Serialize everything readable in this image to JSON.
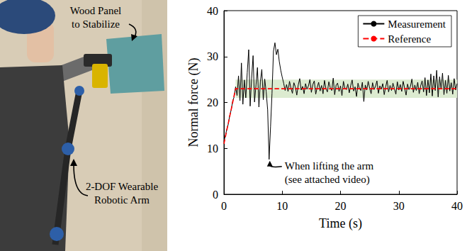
{
  "chart_data": {
    "type": "line",
    "x_label": "Time (s)",
    "y_label": "Normal force (N)",
    "xlim": [
      0,
      40
    ],
    "xticks": [
      0,
      10,
      20,
      30,
      40
    ],
    "ylim": [
      0,
      40
    ],
    "yticks": [
      0,
      10,
      20,
      30,
      40
    ],
    "grid": false,
    "legend": "upper right",
    "annotation": [
      "When lifting the arm",
      "(see attached video)"
    ],
    "tolerance_band": {
      "x": [
        2,
        40
      ],
      "y": [
        21,
        25
      ],
      "color": "#dcebd0"
    },
    "x": [
      0,
      0.25,
      0.5,
      0.75,
      1,
      1.25,
      1.5,
      1.75,
      2,
      2.25,
      2.5,
      2.75,
      3,
      3.25,
      3.5,
      3.75,
      4,
      4.25,
      4.5,
      4.75,
      5,
      5.25,
      5.5,
      5.75,
      6,
      6.25,
      6.5,
      6.75,
      7,
      7.25,
      7.5,
      7.75,
      8,
      8.25,
      8.5,
      8.75,
      9,
      9.25,
      9.5,
      9.75,
      10,
      10.25,
      10.5,
      10.75,
      11,
      11.25,
      11.5,
      11.75,
      12,
      12.25,
      12.5,
      12.75,
      13,
      13.25,
      13.5,
      13.75,
      14,
      14.25,
      14.5,
      14.75,
      15,
      15.25,
      15.5,
      15.75,
      16,
      16.25,
      16.5,
      16.75,
      17,
      17.25,
      17.5,
      17.75,
      18,
      18.25,
      18.5,
      18.75,
      19,
      19.25,
      19.5,
      19.75,
      20,
      20.25,
      20.5,
      20.75,
      21,
      21.25,
      21.5,
      21.75,
      22,
      22.25,
      22.5,
      22.75,
      23,
      23.25,
      23.5,
      23.75,
      24,
      24.25,
      24.5,
      24.75,
      25,
      25.25,
      25.5,
      25.75,
      26,
      26.25,
      26.5,
      26.75,
      27,
      27.25,
      27.5,
      27.75,
      28,
      28.25,
      28.5,
      28.75,
      29,
      29.25,
      29.5,
      29.75,
      30,
      30.25,
      30.5,
      30.75,
      31,
      31.25,
      31.5,
      31.75,
      32,
      32.25,
      32.5,
      32.75,
      33,
      33.25,
      33.5,
      33.75,
      34,
      34.25,
      34.5,
      34.75,
      35,
      35.25,
      35.5,
      35.75,
      36,
      36.25,
      36.5,
      36.75,
      37,
      37.25,
      37.5,
      37.75,
      38,
      38.25,
      38.5,
      38.75,
      39,
      39.25,
      39.5,
      39.75,
      40
    ],
    "series": [
      {
        "name": "Measurement",
        "color": "#000000",
        "marker": "none",
        "line_style": "solid",
        "values": [
          11.5,
          12.8,
          14.2,
          15.3,
          17.2,
          18.4,
          20.3,
          21.2,
          23.4,
          21.5,
          25.8,
          20.4,
          28.6,
          19.6,
          24.9,
          21.0,
          26.5,
          31.5,
          19.2,
          25.3,
          30.2,
          20.1,
          23.8,
          27.6,
          19.0,
          24.5,
          27.2,
          20.6,
          25.1,
          22.3,
          18.4,
          7.6,
          14.8,
          22.0,
          31.2,
          33.0,
          30.4,
          31.6,
          28.9,
          27.0,
          25.5,
          24.2,
          22.6,
          23.9,
          22.4,
          24.6,
          23.1,
          22.0,
          24.3,
          23.4,
          21.6,
          23.8,
          25.2,
          22.7,
          23.5,
          21.9,
          24.1,
          22.9,
          23.6,
          25.0,
          22.2,
          23.9,
          24.7,
          21.8,
          23.3,
          24.4,
          22.5,
          23.7,
          21.9,
          24.8,
          23.0,
          22.3,
          24.5,
          23.2,
          22.6,
          25.3,
          21.7,
          23.8,
          24.2,
          22.4,
          23.6,
          21.5,
          24.6,
          23.1,
          22.8,
          24.0,
          22.1,
          23.7,
          24.9,
          22.5,
          23.4,
          21.3,
          24.2,
          23.0,
          22.6,
          24.4,
          20.2,
          23.8,
          22.7,
          24.6,
          23.1,
          21.9,
          24.3,
          22.8,
          23.5,
          24.7,
          22.0,
          23.6,
          22.9,
          24.1,
          21.7,
          23.4,
          24.8,
          22.3,
          23.7,
          22.6,
          24.2,
          23.0,
          21.8,
          24.5,
          22.7,
          23.9,
          22.4,
          24.6,
          23.1,
          21.6,
          24.0,
          22.8,
          23.5,
          25.1,
          22.2,
          23.8,
          22.6,
          24.4,
          21.9,
          23.6,
          24.7,
          22.3,
          25.4,
          21.5,
          24.9,
          22.1,
          26.2,
          21.4,
          25.8,
          22.6,
          27.0,
          21.2,
          25.6,
          22.9,
          26.4,
          21.7,
          24.8,
          22.0,
          25.9,
          22.5,
          24.3,
          21.8,
          25.2,
          22.7,
          24.1
        ]
      },
      {
        "name": "Reference",
        "color": "#ff0000",
        "marker": "none",
        "line_style": "dashed",
        "values": [
          11,
          12.5,
          14,
          15.5,
          17,
          18.5,
          20,
          21.5,
          23,
          23,
          23,
          23,
          23,
          23,
          23,
          23,
          23,
          23,
          23,
          23,
          23,
          23,
          23,
          23,
          23,
          23,
          23,
          23,
          23,
          23,
          23,
          23,
          23,
          23,
          23,
          23,
          23,
          23,
          23,
          23,
          23,
          23,
          23,
          23,
          23,
          23,
          23,
          23,
          23,
          23,
          23,
          23,
          23,
          23,
          23,
          23,
          23,
          23,
          23,
          23,
          23,
          23,
          23,
          23,
          23,
          23,
          23,
          23,
          23,
          23,
          23,
          23,
          23,
          23,
          23,
          23,
          23,
          23,
          23,
          23,
          23,
          23,
          23,
          23,
          23,
          23,
          23,
          23,
          23,
          23,
          23,
          23,
          23,
          23,
          23,
          23,
          23,
          23,
          23,
          23,
          23,
          23,
          23,
          23,
          23,
          23,
          23,
          23,
          23,
          23,
          23,
          23,
          23,
          23,
          23,
          23,
          23,
          23,
          23,
          23,
          23,
          23,
          23,
          23,
          23,
          23,
          23,
          23,
          23,
          23,
          23,
          23,
          23,
          23,
          23,
          23,
          23,
          23,
          23,
          23,
          23,
          23,
          23,
          23,
          23,
          23,
          23,
          23,
          23,
          23,
          23,
          23,
          23,
          23,
          23,
          23,
          23,
          23,
          23,
          23,
          23
        ]
      }
    ]
  },
  "photo_labels": [
    {
      "lines": [
        "Wood Panel",
        "to Stabilize"
      ]
    },
    {
      "lines": [
        "2-DOF Wearable",
        "Robotic Arm"
      ]
    }
  ]
}
